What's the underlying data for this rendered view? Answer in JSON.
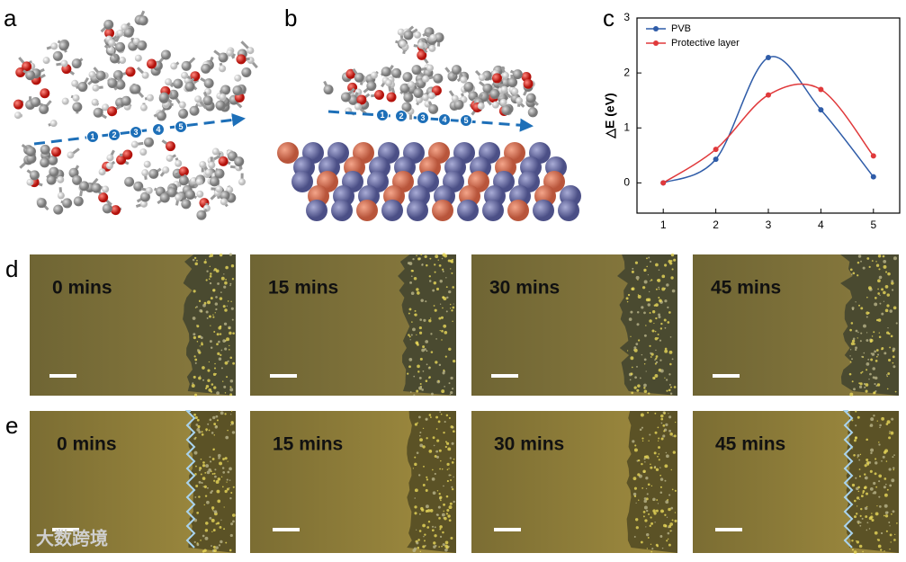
{
  "panel_labels": [
    "a",
    "b",
    "c"
  ],
  "path_markers": [
    "1",
    "2",
    "3",
    "4",
    "5"
  ],
  "micrographs": [
    {
      "label": "d",
      "times": [
        "0 mins",
        "15 mins",
        "30 mins",
        "45 mins"
      ]
    },
    {
      "label": "e",
      "times": [
        "0 mins",
        "15 mins",
        "30 mins",
        "45 mins"
      ]
    }
  ],
  "watermark": "大数跨境",
  "chart_data": {
    "type": "line",
    "y_label": "△E (eV)",
    "x": [
      1,
      2,
      3,
      4,
      5
    ],
    "series": [
      {
        "name": "PVB",
        "color": "#2f5ca8",
        "values": [
          0,
          0.43,
          2.28,
          1.33,
          0.11
        ]
      },
      {
        "name": "Protective layer",
        "color": "#e0393b",
        "values": [
          0,
          0.61,
          1.6,
          1.7,
          0.49
        ]
      }
    ],
    "xlim": [
      0.5,
      5.5
    ],
    "xticks": [
      1,
      2,
      3,
      4,
      5
    ],
    "ylim": [
      -0.55,
      3
    ],
    "yticks": [
      0,
      1,
      2,
      3
    ],
    "legend": "upper left",
    "smooth": true
  }
}
